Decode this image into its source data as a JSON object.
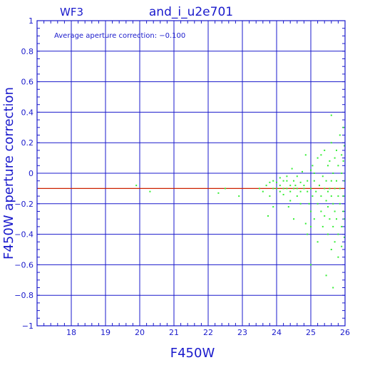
{
  "chart_data": {
    "type": "scatter",
    "chip_label": "WF3",
    "title": "and_i_u2e701",
    "annotation": "Average aperture correction: −0.100",
    "xlabel": "F450W",
    "ylabel": "F450W aperture correction",
    "xlim": [
      17,
      26
    ],
    "ylim": [
      -1,
      1
    ],
    "x_ticks": [
      18,
      19,
      20,
      21,
      22,
      23,
      24,
      25,
      26
    ],
    "x_tick_labels": [
      "18",
      "19",
      "20",
      "21",
      "22",
      "23",
      "24",
      "25",
      "26"
    ],
    "y_ticks": [
      1,
      0.8,
      0.6,
      0.4,
      0.2,
      0,
      -0.2,
      -0.4,
      -0.6,
      -0.8,
      -1
    ],
    "y_tick_labels": [
      "1",
      "0.8",
      "0.6",
      "0.4",
      "0.2",
      "0",
      "−0.2",
      "−0.4",
      "−0.6",
      "−0.8",
      "−1"
    ],
    "grid": true,
    "average_correction": -0.1,
    "colors": {
      "axes": "#1a1acc",
      "grid": "#1a1acc",
      "points": "#33ee33",
      "average_line": "#cc2200"
    },
    "series": [
      {
        "points": [
          [
            19.9,
            -0.08
          ],
          [
            20.3,
            -0.12
          ],
          [
            22.3,
            -0.13
          ],
          [
            22.5,
            -0.1
          ],
          [
            22.9,
            -0.15
          ],
          [
            23.5,
            -0.1
          ],
          [
            23.6,
            -0.12
          ],
          [
            23.7,
            -0.08
          ],
          [
            23.8,
            -0.06
          ],
          [
            23.8,
            -0.15
          ],
          [
            23.9,
            -0.1
          ],
          [
            23.9,
            -0.05
          ],
          [
            23.75,
            -0.28
          ],
          [
            23.9,
            -0.22
          ],
          [
            24.0,
            -0.1
          ],
          [
            24.0,
            -0.06
          ],
          [
            24.1,
            -0.12
          ],
          [
            24.1,
            -0.03
          ],
          [
            24.1,
            -0.08
          ],
          [
            24.2,
            -0.1
          ],
          [
            24.2,
            -0.05
          ],
          [
            24.2,
            -0.14
          ],
          [
            24.3,
            -0.1
          ],
          [
            24.3,
            -0.05
          ],
          [
            24.3,
            -0.02
          ],
          [
            24.35,
            -0.22
          ],
          [
            24.4,
            -0.08
          ],
          [
            24.4,
            -0.12
          ],
          [
            24.4,
            -0.18
          ],
          [
            24.45,
            0.03
          ],
          [
            24.5,
            -0.1
          ],
          [
            24.5,
            -0.05
          ],
          [
            24.5,
            -0.3
          ],
          [
            24.55,
            -0.08
          ],
          [
            24.6,
            -0.1
          ],
          [
            24.6,
            -0.02
          ],
          [
            24.6,
            -0.15
          ],
          [
            24.7,
            -0.06
          ],
          [
            24.7,
            -0.12
          ],
          [
            24.7,
            -0.2
          ],
          [
            24.75,
            0.01
          ],
          [
            24.8,
            -0.08
          ],
          [
            24.8,
            -0.1
          ],
          [
            24.85,
            0.12
          ],
          [
            24.85,
            -0.33
          ],
          [
            24.9,
            -0.05
          ],
          [
            24.9,
            -0.12
          ],
          [
            24.9,
            -0.4
          ],
          [
            24.95,
            -0.2
          ],
          [
            25.0,
            -0.1
          ],
          [
            25.0,
            0.02
          ],
          [
            25.0,
            -0.25
          ],
          [
            25.0,
            -0.35
          ],
          [
            25.0,
            -0.6
          ],
          [
            25.05,
            -0.15
          ],
          [
            25.05,
            0.05
          ],
          [
            25.1,
            -0.05
          ],
          [
            25.1,
            -0.3
          ],
          [
            25.1,
            0.0
          ],
          [
            25.15,
            -0.12
          ],
          [
            25.2,
            -0.2
          ],
          [
            25.2,
            0.1
          ],
          [
            25.2,
            -0.45
          ],
          [
            25.25,
            -0.08
          ],
          [
            25.3,
            -0.15
          ],
          [
            25.3,
            0.12
          ],
          [
            25.3,
            -0.25
          ],
          [
            25.35,
            -0.02
          ],
          [
            25.35,
            -0.35
          ],
          [
            25.4,
            -0.1
          ],
          [
            25.4,
            0.15
          ],
          [
            25.4,
            -0.28
          ],
          [
            25.45,
            -0.05
          ],
          [
            25.45,
            -0.18
          ],
          [
            25.45,
            -0.67
          ],
          [
            25.5,
            -0.12
          ],
          [
            25.5,
            0.05
          ],
          [
            25.5,
            -0.4
          ],
          [
            25.5,
            -0.22
          ],
          [
            25.55,
            0.08
          ],
          [
            25.55,
            -0.1
          ],
          [
            25.55,
            -0.3
          ],
          [
            25.6,
            -0.05
          ],
          [
            25.6,
            0.2
          ],
          [
            25.6,
            -0.15
          ],
          [
            25.6,
            -0.5
          ],
          [
            25.6,
            0.38
          ],
          [
            25.65,
            -0.2
          ],
          [
            25.65,
            0.0
          ],
          [
            25.65,
            -0.35
          ],
          [
            25.65,
            -0.75
          ],
          [
            25.7,
            -0.1
          ],
          [
            25.7,
            0.1
          ],
          [
            25.7,
            -0.25
          ],
          [
            25.7,
            -0.45
          ],
          [
            25.75,
            -0.05
          ],
          [
            25.75,
            0.15
          ],
          [
            25.75,
            -0.3
          ],
          [
            25.8,
            -0.15
          ],
          [
            25.8,
            0.05
          ],
          [
            25.8,
            -0.4
          ],
          [
            25.8,
            -0.55
          ],
          [
            25.85,
            -0.1
          ],
          [
            25.85,
            0.25
          ],
          [
            25.85,
            -0.2
          ],
          [
            25.9,
            0.0
          ],
          [
            25.9,
            -0.35
          ],
          [
            25.9,
            0.12
          ],
          [
            25.9,
            -0.48
          ],
          [
            25.95,
            -0.15
          ],
          [
            25.95,
            0.3
          ],
          [
            25.95,
            -0.25
          ],
          [
            25.95,
            0.08
          ],
          [
            25.98,
            -0.42
          ],
          [
            25.98,
            -0.05
          ],
          [
            25.98,
            0.18
          ],
          [
            25.98,
            -0.3
          ]
        ]
      }
    ]
  }
}
